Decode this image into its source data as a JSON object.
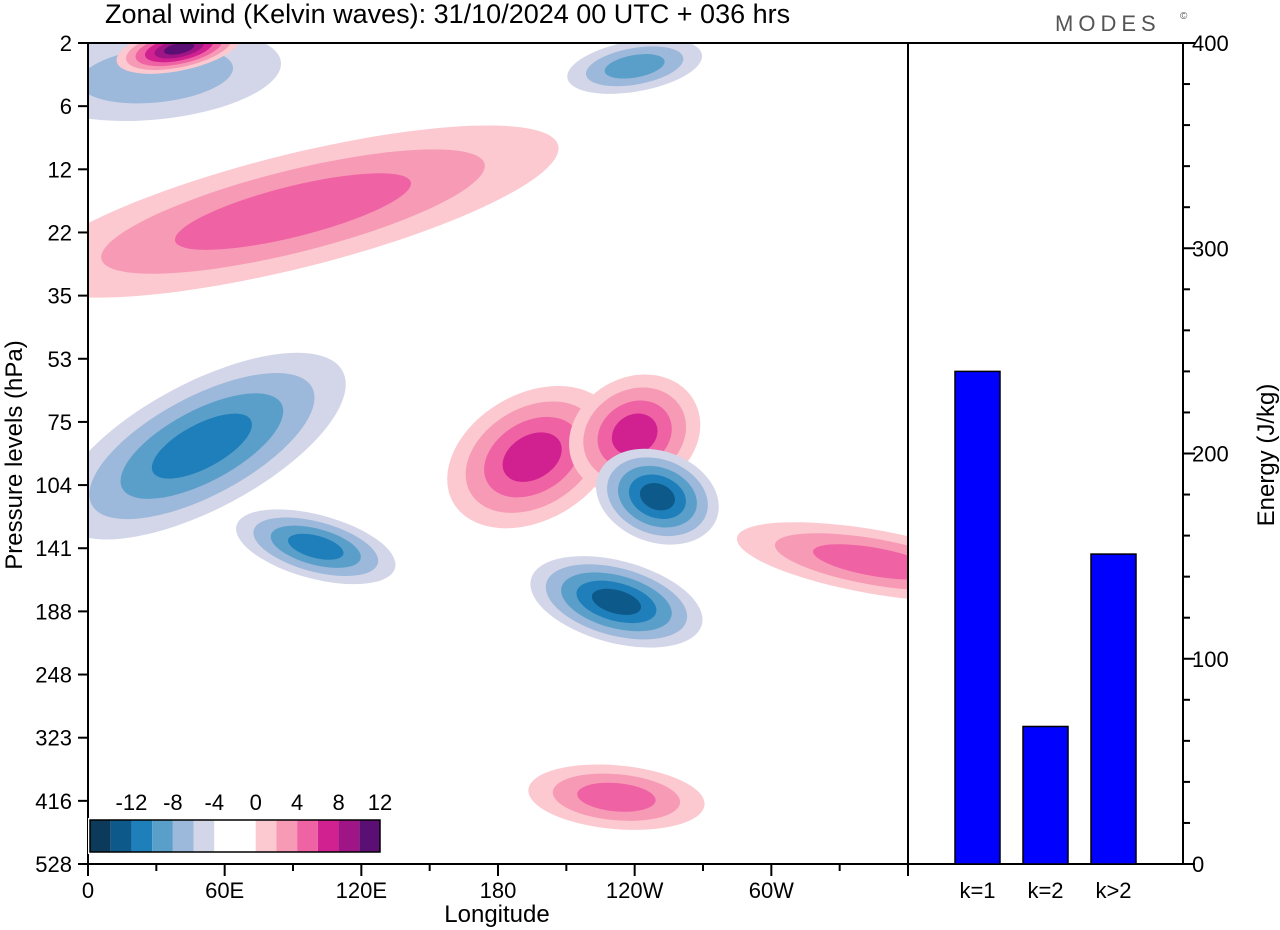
{
  "title": "Zonal wind (Kelvin waves):  31/10/2024  00 UTC  + 036 hrs",
  "logo": "MODES",
  "logo_mark": "©",
  "colors": {
    "neg": [
      "#0c3a5a",
      "#0d5a8a",
      "#1f7fba",
      "#5a9fca",
      "#9cb8da",
      "#d3d6e8"
    ],
    "pos": [
      "#fbc9cf",
      "#f79ab5",
      "#ef62a4",
      "#d12191",
      "#a01585",
      "#5b0f74"
    ],
    "bar": "#0000ff"
  },
  "chart_data": [
    {
      "type": "heatmap",
      "description_of_axes": "longitude vs pressure level",
      "xlabel": "Longitude",
      "ylabel": "Pressure levels (hPa)",
      "x_ticks": [
        {
          "lon": 0,
          "label": "0"
        },
        {
          "lon": 60,
          "label": "60E"
        },
        {
          "lon": 120,
          "label": "120E"
        },
        {
          "lon": 180,
          "label": "180"
        },
        {
          "lon": 240,
          "label": "120W"
        },
        {
          "lon": 300,
          "label": "60W"
        }
      ],
      "y_ticks": [
        "2",
        "6",
        "12",
        "22",
        "35",
        "53",
        "75",
        "104",
        "141",
        "188",
        "248",
        "323",
        "416",
        "528"
      ],
      "xlim": [
        0,
        360
      ],
      "colorbar": {
        "labels": [
          "-12",
          "-8",
          "-4",
          "0",
          "4",
          "8",
          "12"
        ],
        "levels": [
          -14,
          -12,
          -10,
          -8,
          -6,
          -4,
          -2,
          2,
          4,
          6,
          8,
          10,
          12,
          14
        ]
      },
      "features": [
        {
          "name": "neg",
          "lon_center": 30,
          "level_center": 3.5,
          "peak": -4
        },
        {
          "name": "pos",
          "lon_center": 40,
          "level_center": 2.2,
          "peak": 12
        },
        {
          "name": "pos",
          "lon_center": 90,
          "level_center": 18,
          "peak": 6
        },
        {
          "name": "neg",
          "lon_center": 50,
          "level_center": 85,
          "peak": -8
        },
        {
          "name": "neg",
          "lon_center": 100,
          "level_center": 140,
          "peak": -8
        },
        {
          "name": "pos",
          "lon_center": 195,
          "level_center": 90,
          "peak": 8
        },
        {
          "name": "pos",
          "lon_center": 240,
          "level_center": 80,
          "peak": 8
        },
        {
          "name": "neg",
          "lon_center": 250,
          "level_center": 110,
          "peak": -10
        },
        {
          "name": "neg",
          "lon_center": 232,
          "level_center": 180,
          "peak": -10
        },
        {
          "name": "neg",
          "lon_center": 240,
          "level_center": 3,
          "peak": -6
        },
        {
          "name": "pos",
          "lon_center": 345,
          "level_center": 150,
          "peak": 6
        },
        {
          "name": "pos",
          "lon_center": 232,
          "level_center": 410,
          "peak": 6
        }
      ]
    },
    {
      "type": "bar",
      "categories": [
        "k=1",
        "k=2",
        "k>2"
      ],
      "values": [
        240,
        67,
        151
      ],
      "ylabel": "Energy (J/kg)",
      "ylim": [
        0,
        400
      ],
      "y_ticks": [
        "0",
        "100",
        "200",
        "300",
        "400"
      ]
    }
  ]
}
